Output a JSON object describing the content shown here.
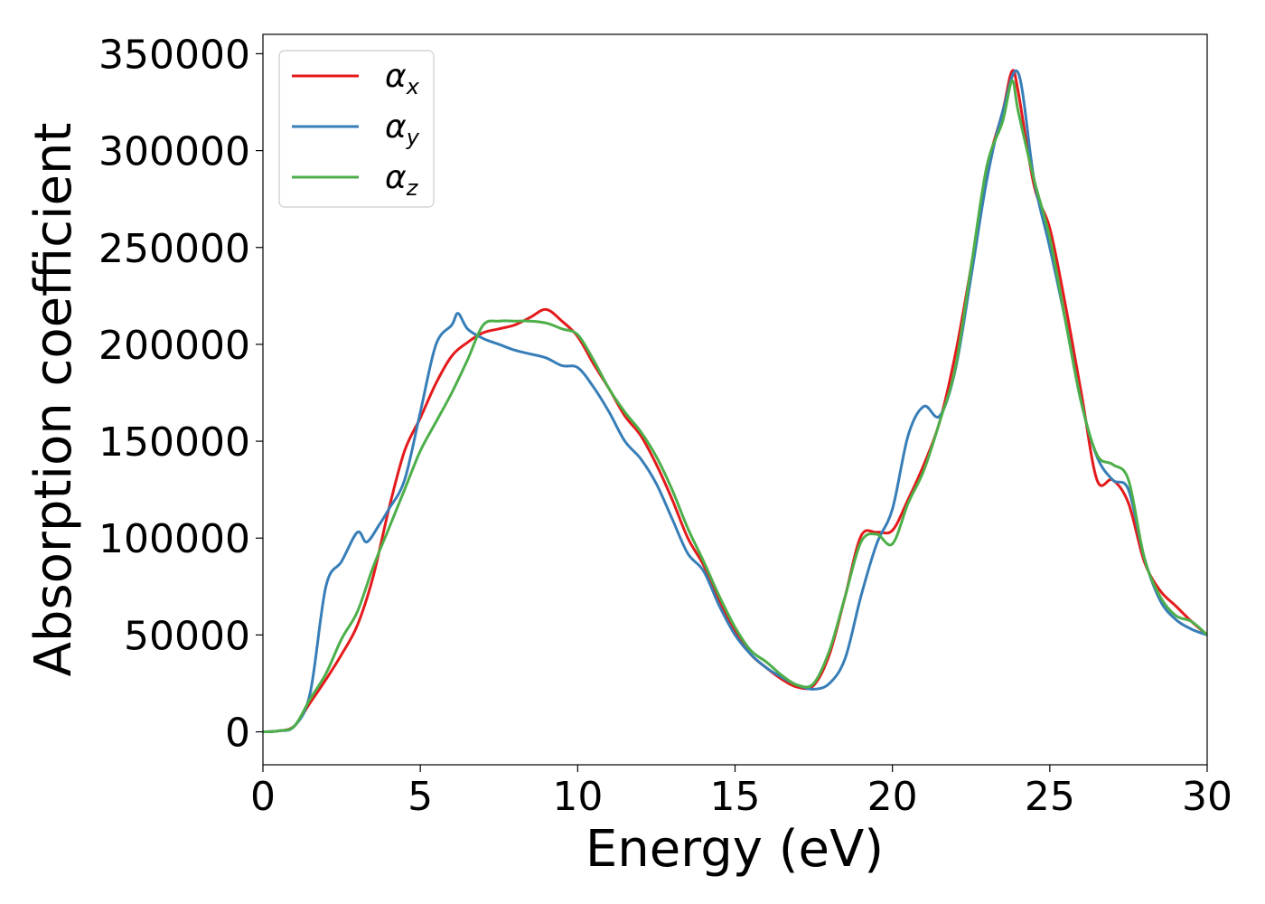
{
  "chart_data": {
    "type": "line",
    "xlabel": "Energy (eV)",
    "ylabel": "Absorption coefficient",
    "xlim": [
      0,
      30
    ],
    "ylim": [
      -17000,
      360000
    ],
    "xticks": [
      0,
      5,
      10,
      15,
      20,
      25,
      30
    ],
    "yticks": [
      0,
      50000,
      100000,
      150000,
      200000,
      250000,
      300000,
      350000
    ],
    "grid": false,
    "legend": {
      "position": "top-left",
      "entries": [
        {
          "base": "α",
          "sub": "x",
          "color": "#e41a1c"
        },
        {
          "base": "α",
          "sub": "y",
          "color": "#377eb8"
        },
        {
          "base": "α",
          "sub": "z",
          "color": "#4daf4a"
        }
      ]
    },
    "series": [
      {
        "name": "αx",
        "color": "#e41a1c",
        "x": [
          0,
          0.5,
          1,
          1.5,
          2,
          2.5,
          3,
          3.5,
          4,
          4.5,
          5,
          5.5,
          6,
          6.5,
          7,
          7.5,
          8,
          8.5,
          9,
          9.5,
          10,
          10.5,
          11,
          11.5,
          12,
          12.5,
          13,
          13.5,
          14,
          14.5,
          15,
          15.5,
          16,
          16.5,
          17,
          17.5,
          18,
          18.5,
          19,
          19.5,
          20,
          20.5,
          21,
          21.5,
          22,
          22.5,
          23,
          23.5,
          23.8,
          24,
          24.5,
          25,
          25.5,
          26,
          26.5,
          27,
          27.5,
          28,
          28.5,
          29,
          29.5,
          30
        ],
        "y": [
          0,
          500,
          3000,
          15000,
          27000,
          40000,
          55000,
          80000,
          115000,
          145000,
          162000,
          180000,
          194000,
          201000,
          206000,
          208000,
          210000,
          214000,
          218000,
          212000,
          204000,
          190000,
          177000,
          163000,
          153000,
          138000,
          120000,
          100000,
          86000,
          68000,
          52000,
          40000,
          33000,
          27000,
          23000,
          24000,
          40000,
          70000,
          101000,
          103000,
          104000,
          120000,
          138000,
          160000,
          195000,
          240000,
          290000,
          320000,
          341000,
          330000,
          282000,
          260000,
          220000,
          175000,
          130000,
          130000,
          118000,
          88000,
          73000,
          65000,
          57000,
          50000
        ]
      },
      {
        "name": "αy",
        "color": "#377eb8",
        "x": [
          0,
          0.5,
          1,
          1.5,
          2,
          2.5,
          3,
          3.3,
          3.7,
          4,
          4.5,
          5,
          5.5,
          6,
          6.2,
          6.5,
          7,
          7.5,
          8,
          8.5,
          9,
          9.5,
          10,
          10.5,
          11,
          11.5,
          12,
          12.5,
          13,
          13.5,
          14,
          14.5,
          15,
          15.5,
          16,
          16.5,
          17,
          17.5,
          18,
          18.5,
          19,
          19.5,
          20,
          20.5,
          21,
          21.5,
          22,
          22.5,
          23,
          23.5,
          24,
          24.5,
          25,
          25.5,
          26,
          26.5,
          27,
          27.5,
          28,
          28.5,
          29,
          29.5,
          30
        ],
        "y": [
          0,
          500,
          3000,
          20000,
          75000,
          88000,
          103000,
          98000,
          107000,
          115000,
          130000,
          165000,
          200000,
          210000,
          216000,
          208000,
          203000,
          200000,
          197000,
          195000,
          193000,
          189000,
          188000,
          178000,
          165000,
          150000,
          141000,
          128000,
          110000,
          92000,
          83000,
          65000,
          50000,
          40000,
          33000,
          28000,
          24000,
          22000,
          25000,
          38000,
          70000,
          97000,
          115000,
          153000,
          168000,
          163000,
          187000,
          235000,
          285000,
          320000,
          340000,
          285000,
          250000,
          212000,
          170000,
          142000,
          130000,
          125000,
          90000,
          68000,
          58000,
          53000,
          50000
        ]
      },
      {
        "name": "αz",
        "color": "#4daf4a",
        "x": [
          0,
          0.5,
          1,
          1.5,
          2,
          2.5,
          3,
          3.5,
          4,
          4.5,
          5,
          5.5,
          6,
          6.5,
          7,
          7.5,
          8,
          8.5,
          9,
          9.5,
          10,
          10.5,
          11,
          11.5,
          12,
          12.5,
          13,
          13.5,
          14,
          14.5,
          15,
          15.5,
          16,
          16.5,
          17,
          17.5,
          18,
          18.5,
          19,
          19.5,
          20,
          20.5,
          21,
          21.5,
          22,
          22.5,
          23,
          23.5,
          23.8,
          24,
          24.5,
          25,
          25.5,
          26,
          26.5,
          27,
          27.5,
          28,
          28.5,
          29,
          29.5,
          30
        ],
        "y": [
          0,
          500,
          3000,
          17000,
          30000,
          48000,
          62000,
          85000,
          105000,
          125000,
          145000,
          160000,
          175000,
          192000,
          210000,
          212000,
          212000,
          212000,
          211000,
          208000,
          205000,
          192000,
          177000,
          165000,
          155000,
          142000,
          125000,
          105000,
          88000,
          70000,
          54000,
          42000,
          36000,
          29000,
          24000,
          25000,
          42000,
          70000,
          98000,
          102000,
          97000,
          118000,
          135000,
          160000,
          188000,
          240000,
          292000,
          315000,
          336000,
          320000,
          285000,
          255000,
          212000,
          170000,
          143000,
          138000,
          130000,
          90000,
          70000,
          60000,
          57000,
          50000
        ]
      }
    ]
  }
}
